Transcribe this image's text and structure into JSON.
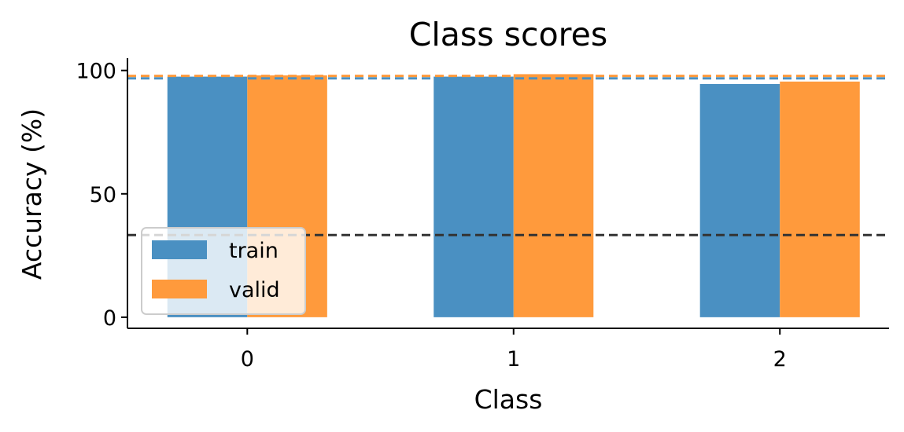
{
  "chart_data": {
    "type": "bar",
    "title": "Class scores",
    "xlabel": "Class",
    "ylabel": "Accuracy (%)",
    "categories": [
      "0",
      "1",
      "2"
    ],
    "yticks": [
      0,
      50,
      100
    ],
    "ylim": [
      -4.5,
      105
    ],
    "grid": false,
    "legend_placement": "lower-left",
    "series": [
      {
        "name": "train",
        "color": "#4a90c2",
        "values": [
          97.5,
          97.5,
          94.5
        ]
      },
      {
        "name": "valid",
        "color": "#ff9a3c",
        "values": [
          98.0,
          98.5,
          95.5
        ]
      }
    ],
    "reference_lines": [
      {
        "y": 96.8,
        "color": "#4a90c2",
        "style": "dashed"
      },
      {
        "y": 97.8,
        "color": "#ff9a3c",
        "style": "dashed"
      },
      {
        "y": 33.3,
        "color": "#333333",
        "style": "dashed"
      }
    ]
  }
}
